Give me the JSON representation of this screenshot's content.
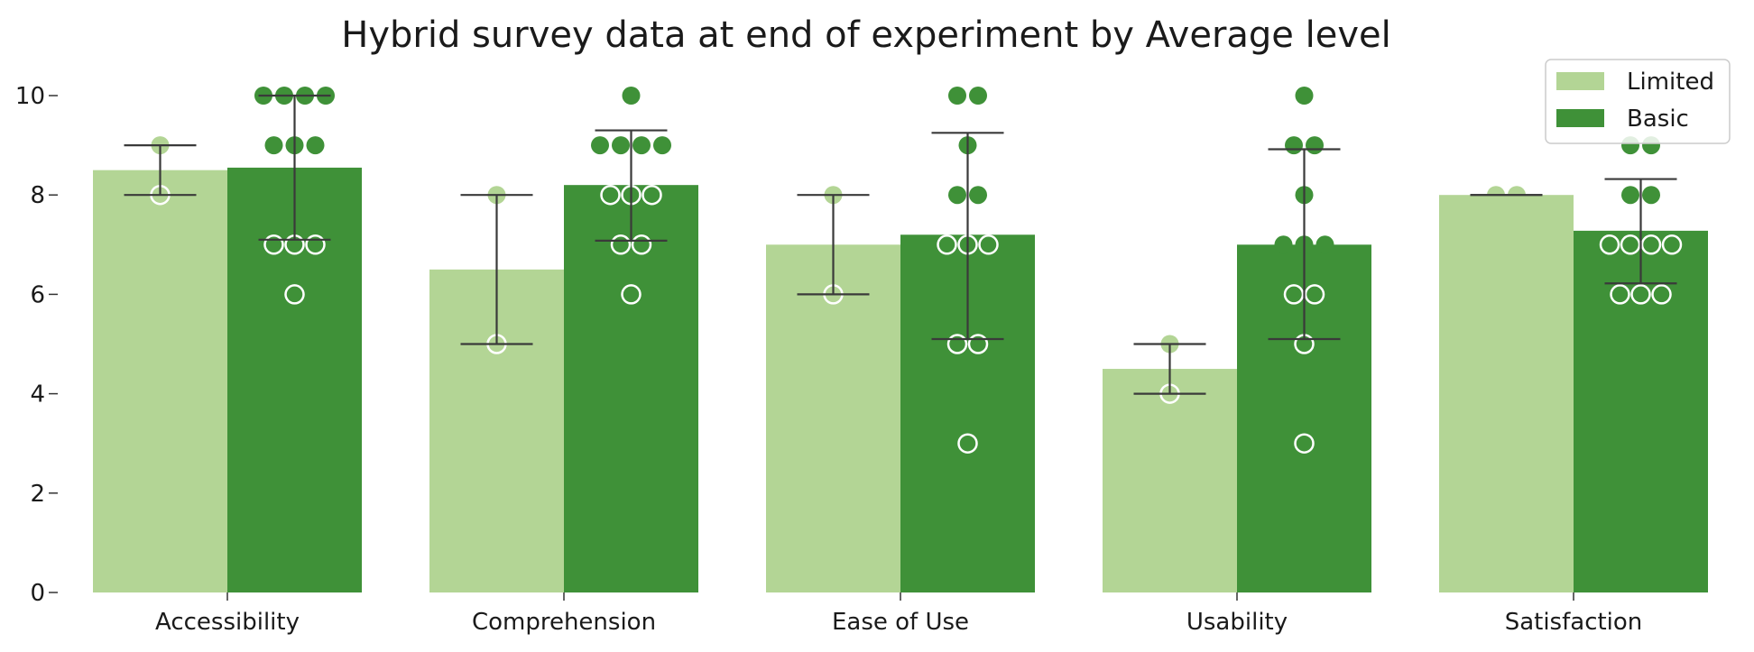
{
  "chart_data": {
    "type": "bar",
    "title": "Hybrid survey data at end of experiment by Average level",
    "xlabel": "",
    "ylabel": "",
    "ylim": [
      0,
      10.5
    ],
    "yticks": [
      0,
      2,
      4,
      6,
      8,
      10
    ],
    "grid": false,
    "legend_position": "top-right",
    "categories": [
      "Accessibility",
      "Comprehension",
      "Ease of Use",
      "Usability",
      "Satisfaction"
    ],
    "series": [
      {
        "name": "Limited",
        "color": "#b3d595",
        "values": [
          8.5,
          6.5,
          7.0,
          4.5,
          8.0
        ],
        "error_low": [
          8.0,
          5.0,
          6.0,
          4.0,
          8.0
        ],
        "error_high": [
          9.0,
          8.0,
          8.0,
          5.0,
          8.0
        ],
        "points": [
          [
            9,
            8
          ],
          [
            8,
            5
          ],
          [
            8,
            6
          ],
          [
            5,
            4
          ],
          [
            8,
            8
          ]
        ]
      },
      {
        "name": "Basic",
        "color": "#3f9138",
        "values": [
          8.55,
          8.2,
          7.2,
          7.0,
          7.28
        ],
        "error_low": [
          7.1,
          7.08,
          5.1,
          5.1,
          6.22
        ],
        "error_high": [
          10.0,
          9.3,
          9.25,
          8.92,
          8.32
        ],
        "points": [
          [
            10,
            10,
            10,
            10,
            9,
            9,
            9,
            7,
            7,
            7,
            6
          ],
          [
            10,
            9,
            9,
            9,
            9,
            8,
            8,
            8,
            7,
            7,
            6
          ],
          [
            10,
            10,
            9,
            8,
            8,
            7,
            7,
            7,
            5,
            5,
            3
          ],
          [
            10,
            9,
            9,
            8,
            7,
            7,
            7,
            6,
            6,
            5,
            3
          ],
          [
            9,
            9,
            8,
            8,
            7,
            7,
            7,
            7,
            6,
            6,
            6
          ]
        ]
      }
    ]
  }
}
